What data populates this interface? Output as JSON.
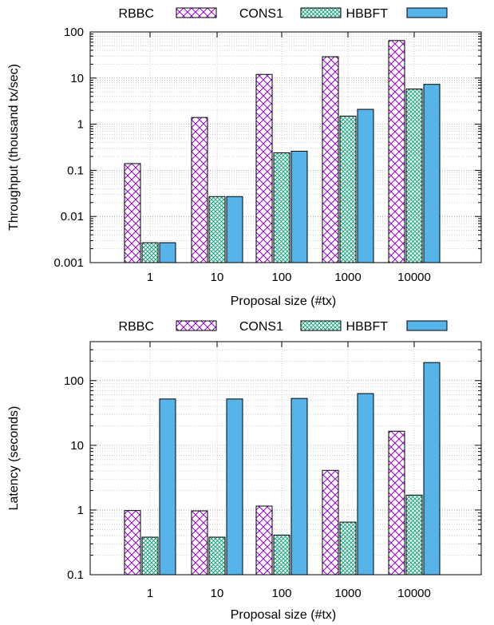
{
  "colors": {
    "RBBC": "#9400d3",
    "CONS1": "#009e73",
    "HBBFT": "#56b4e9"
  },
  "chart_data": [
    {
      "type": "bar",
      "yscale": "log",
      "categories": [
        "1",
        "10",
        "100",
        "1000",
        "10000"
      ],
      "xlabel": "Proposal size (#tx)",
      "ylabel": "Throughput (thousand tx/sec)",
      "ylim": [
        0.001,
        100
      ],
      "yticks": [
        "0.001",
        "0.01",
        "0.1",
        "1",
        "10",
        "100"
      ],
      "grid": true,
      "legend_position": "top",
      "series": [
        {
          "name": "RBBC",
          "values": [
            0.14,
            1.4,
            12,
            29,
            65
          ]
        },
        {
          "name": "CONS1",
          "values": [
            0.0027,
            0.027,
            0.24,
            1.5,
            5.8
          ]
        },
        {
          "name": "HBBFT",
          "values": [
            0.0027,
            0.027,
            0.26,
            2.1,
            7.3
          ]
        }
      ]
    },
    {
      "type": "bar",
      "yscale": "log",
      "categories": [
        "1",
        "10",
        "100",
        "1000",
        "10000"
      ],
      "xlabel": "Proposal size (#tx)",
      "ylabel": "Latency (seconds)",
      "ylim": [
        0.1,
        400
      ],
      "yticks": [
        "0.1",
        "1",
        "10",
        "100"
      ],
      "grid": true,
      "legend_position": "top",
      "series": [
        {
          "name": "RBBC",
          "values": [
            0.98,
            0.97,
            1.15,
            4.1,
            16.5
          ]
        },
        {
          "name": "CONS1",
          "values": [
            0.38,
            0.38,
            0.41,
            0.65,
            1.7
          ]
        },
        {
          "name": "HBBFT",
          "values": [
            52,
            52,
            53,
            63,
            190
          ]
        }
      ]
    }
  ]
}
